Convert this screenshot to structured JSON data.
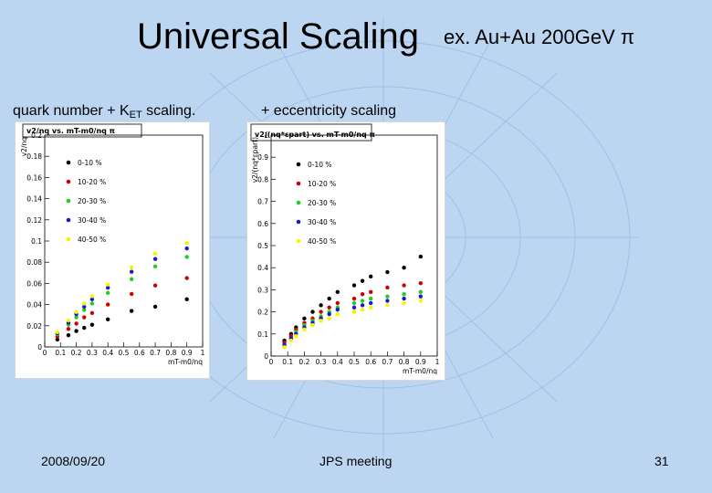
{
  "slide": {
    "title": "Universal Scaling",
    "header_right": "ex. Au+Au  200GeV π",
    "left_label_main": "quark number + K",
    "left_label_sub": "ET",
    "left_label_tail": " scaling.",
    "right_label": "+ eccentricity scaling",
    "footer_date": "2008/09/20",
    "footer_center": "JPS meeting",
    "footer_page": "31"
  },
  "colors": {
    "background": "#bcd6f2",
    "bg_lines": "#9ec0e6",
    "series": [
      "#000000",
      "#cc0000",
      "#22cc22",
      "#1a1acc",
      "#f5f500"
    ]
  },
  "chart_data": [
    {
      "type": "scatter",
      "title": "v2/nq vs. mT-m0/nq π",
      "xlabel": "mT-m0/nq",
      "ylabel": "v2/nq",
      "xlim": [
        0,
        1
      ],
      "ylim": [
        0,
        0.2
      ],
      "xticks": [
        "0",
        "0.1",
        "0.2",
        "0.3",
        "0.4",
        "0.5",
        "0.6",
        "0.7",
        "0.8",
        "0.9",
        "1"
      ],
      "yticks": [
        "0",
        "0.02",
        "0.04",
        "0.06",
        "0.08",
        "0.1",
        "0.12",
        "0.14",
        "0.16",
        "0.18",
        "0.2"
      ],
      "legend_position": "top-left",
      "x": [
        0.08,
        0.15,
        0.2,
        0.25,
        0.3,
        0.4,
        0.55,
        0.7,
        0.9
      ],
      "series": [
        {
          "name": "0-10 %",
          "values": [
            0.007,
            0.011,
            0.015,
            0.018,
            0.021,
            0.026,
            0.034,
            0.038,
            0.045
          ]
        },
        {
          "name": "10-20 %",
          "values": [
            0.01,
            0.017,
            0.022,
            0.028,
            0.032,
            0.04,
            0.05,
            0.058,
            0.065
          ]
        },
        {
          "name": "20-30 %",
          "values": [
            0.012,
            0.021,
            0.028,
            0.035,
            0.041,
            0.051,
            0.064,
            0.076,
            0.085
          ]
        },
        {
          "name": "30-40 %",
          "values": [
            0.013,
            0.023,
            0.031,
            0.038,
            0.045,
            0.056,
            0.071,
            0.083,
            0.093
          ]
        },
        {
          "name": "40-50 %",
          "values": [
            0.014,
            0.025,
            0.033,
            0.041,
            0.048,
            0.059,
            0.075,
            0.088,
            0.098
          ]
        }
      ]
    },
    {
      "type": "scatter",
      "title": "v2/(nq*εpart) vs. mT-m0/nq π",
      "xlabel": "mT-m0/nq",
      "ylabel": "v2/(nq*εpart)",
      "xlim": [
        0,
        1
      ],
      "ylim": [
        0,
        1
      ],
      "xticks": [
        "0",
        "0.1",
        "0.2",
        "0.3",
        "0.4",
        "0.5",
        "0.6",
        "0.7",
        "0.8",
        "0.9",
        "1"
      ],
      "yticks": [
        "0",
        "0.1",
        "0.2",
        "0.3",
        "0.4",
        "0.5",
        "0.6",
        "0.7",
        "0.8",
        "0.9",
        "1"
      ],
      "legend_position": "top-left",
      "x": [
        0.08,
        0.12,
        0.15,
        0.2,
        0.25,
        0.3,
        0.35,
        0.4,
        0.5,
        0.55,
        0.6,
        0.7,
        0.8,
        0.9
      ],
      "series": [
        {
          "name": "0-10 %",
          "values": [
            0.07,
            0.1,
            0.13,
            0.17,
            0.2,
            0.23,
            0.26,
            0.29,
            0.32,
            0.34,
            0.36,
            0.38,
            0.4,
            0.45
          ]
        },
        {
          "name": "10-20 %",
          "values": [
            0.06,
            0.09,
            0.12,
            0.15,
            0.17,
            0.2,
            0.22,
            0.24,
            0.26,
            0.28,
            0.29,
            0.31,
            0.32,
            0.33
          ]
        },
        {
          "name": "20-30 %",
          "values": [
            0.05,
            0.08,
            0.11,
            0.14,
            0.16,
            0.18,
            0.2,
            0.22,
            0.24,
            0.25,
            0.26,
            0.27,
            0.28,
            0.29
          ]
        },
        {
          "name": "30-40 %",
          "values": [
            0.05,
            0.08,
            0.1,
            0.13,
            0.15,
            0.17,
            0.19,
            0.21,
            0.22,
            0.23,
            0.24,
            0.25,
            0.26,
            0.27
          ]
        },
        {
          "name": "40-50 %",
          "values": [
            0.04,
            0.07,
            0.09,
            0.12,
            0.14,
            0.16,
            0.17,
            0.19,
            0.2,
            0.21,
            0.22,
            0.23,
            0.24,
            0.25
          ]
        }
      ]
    }
  ]
}
